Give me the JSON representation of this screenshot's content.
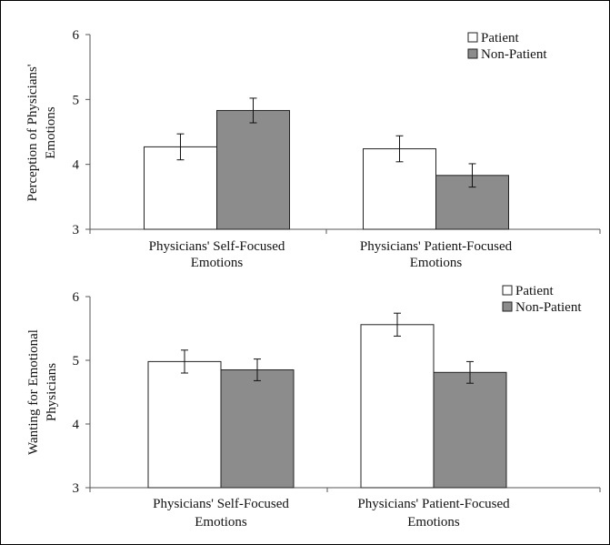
{
  "chart_data": [
    {
      "type": "bar",
      "ylabel": "Perception of Physicians' Emotions",
      "ylabel_lines": [
        "Perception of Physicians'",
        "Emotions"
      ],
      "categories": [
        "Physicians' Self-Focused Emotions",
        "Physicians' Patient-Focused Emotions"
      ],
      "category_lines": [
        [
          "Physicians' Self-Focused",
          "Emotions"
        ],
        [
          "Physicians' Patient-Focused",
          "Emotions"
        ]
      ],
      "ylim": [
        3,
        6
      ],
      "yticks": [
        "3",
        "4",
        "5",
        "6"
      ],
      "series": [
        {
          "name": "Patient",
          "values": [
            4.27,
            4.24
          ],
          "errors": [
            0.2,
            0.2
          ],
          "color": "#ffffff"
        },
        {
          "name": "Non-Patient",
          "values": [
            4.83,
            3.83
          ],
          "errors": [
            0.19,
            0.18
          ],
          "color": "#8c8c8c"
        }
      ],
      "legend": "top-right",
      "grid": false
    },
    {
      "type": "bar",
      "ylabel": "Wanting for Emotional Physicians",
      "ylabel_lines": [
        "Wanting for Emotional",
        "Physicians"
      ],
      "categories": [
        "Physicians' Self-Focused Emotions",
        "Physicians' Patient-Focused Emotions"
      ],
      "category_lines": [
        [
          "Physicians' Self-Focused",
          "Emotions"
        ],
        [
          "Physicians' Patient-Focused",
          "Emotions"
        ]
      ],
      "ylim": [
        3,
        6
      ],
      "yticks": [
        "3",
        "4",
        "5",
        "6"
      ],
      "series": [
        {
          "name": "Patient",
          "values": [
            4.98,
            5.56
          ],
          "errors": [
            0.18,
            0.18
          ],
          "color": "#ffffff"
        },
        {
          "name": "Non-Patient",
          "values": [
            4.85,
            4.81
          ],
          "errors": [
            0.17,
            0.17
          ],
          "color": "#8c8c8c"
        }
      ],
      "legend": "top-right",
      "grid": false
    }
  ]
}
